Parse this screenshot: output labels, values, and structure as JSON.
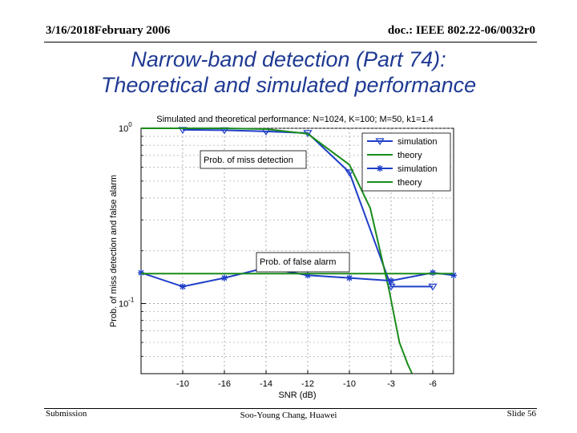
{
  "header": {
    "left": "3/16/2018February 2006",
    "right": "doc.: IEEE 802.22-06/0032r0"
  },
  "slide": {
    "title_line1": "Narrow-band detection (Part 74):",
    "title_line2": "Theoretical and simulated performance"
  },
  "footer": {
    "left": "Submission",
    "center": "Soo-Young Chang, Huawei",
    "right": "Slide 56"
  },
  "colors": {
    "title": "#1f3a93",
    "sim_series": "#1f3fc8",
    "theory_series": "#1a8c1a"
  },
  "chart_data": {
    "type": "line",
    "title": "Simulated and theoretical performance: N=1024, K=100; M=50, k1=1.4",
    "xlabel": "SNR (dB)",
    "ylabel": "Prob. of miss detection and false alarm",
    "xlim": [
      -20,
      -5
    ],
    "ylim": [
      0.0398,
      1.0
    ],
    "yscale": "log",
    "x_tick_labels": [
      "-10",
      "-16",
      "-14",
      "-12",
      "-10",
      "-3",
      "-6"
    ],
    "y_tick_labels": [
      {
        "value": 1.0,
        "base": "10",
        "exp": "0"
      },
      {
        "value": 0.1,
        "base": "10",
        "exp": "-1"
      }
    ],
    "grid": true,
    "legend_position": "top-right",
    "annotations": [
      "Prob. of miss detection",
      "Prob. of false alarm"
    ],
    "series": [
      {
        "name": "simulation",
        "group": "miss",
        "marker": "triangle-down",
        "x": [
          -18,
          -16,
          -14,
          -12,
          -10,
          -8,
          -6
        ],
        "y": [
          0.98,
          0.975,
          0.96,
          0.94,
          0.56,
          0.125,
          0.125
        ]
      },
      {
        "name": "theory",
        "group": "miss",
        "marker": "none",
        "x": [
          -20,
          -18,
          -16,
          -14,
          -12,
          -10,
          -9,
          -8.1,
          -7.6,
          -7.2,
          -7.0
        ],
        "y": [
          1.0,
          1.0,
          1.0,
          0.99,
          0.93,
          0.62,
          0.35,
          0.12,
          0.06,
          0.045,
          0.04
        ]
      },
      {
        "name": "simulation",
        "group": "false_alarm",
        "marker": "star",
        "x": [
          -20,
          -18,
          -16,
          -14,
          -12,
          -10,
          -8,
          -6,
          -5
        ],
        "y": [
          0.15,
          0.125,
          0.14,
          0.16,
          0.145,
          0.14,
          0.135,
          0.15,
          0.145
        ]
      },
      {
        "name": "theory",
        "group": "false_alarm",
        "marker": "none",
        "x": [
          -20,
          -5
        ],
        "y": [
          0.148,
          0.148
        ]
      }
    ]
  }
}
